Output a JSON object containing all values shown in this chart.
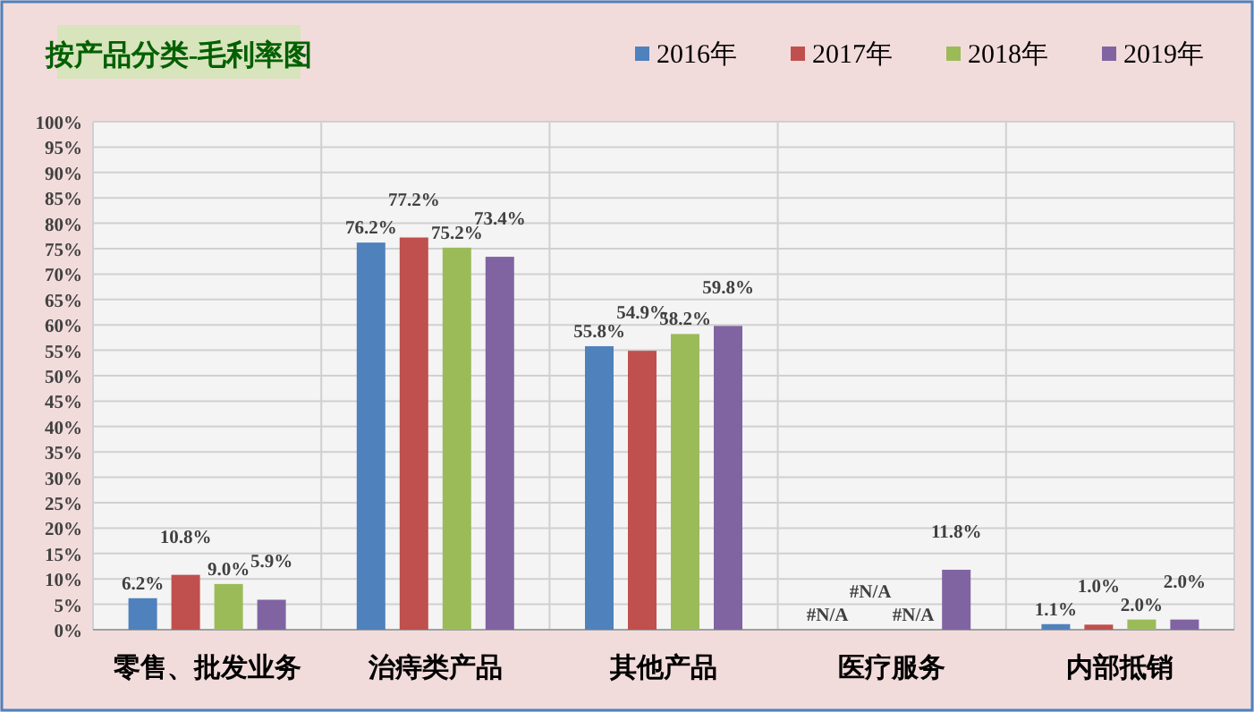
{
  "chart_data": {
    "type": "bar",
    "title": "按产品分类-毛利率图",
    "categories": [
      "零售、批发业务",
      "治痔类产品",
      "其他产品",
      "医疗服务",
      "内部抵销"
    ],
    "series": [
      {
        "name": "2016年",
        "color": "#4f81bd",
        "values": [
          6.2,
          76.2,
          55.8,
          null,
          1.1
        ],
        "value_labels": [
          "6.2%",
          "76.2%",
          "55.8%",
          "#N/A",
          "1.1%"
        ]
      },
      {
        "name": "2017年",
        "color": "#c0504d",
        "values": [
          10.8,
          77.2,
          54.9,
          null,
          1.0
        ],
        "value_labels": [
          "10.8%",
          "77.2%",
          "54.9%",
          "#N/A",
          "1.0%"
        ]
      },
      {
        "name": "2018年",
        "color": "#9bbb59",
        "values": [
          9.0,
          75.2,
          58.2,
          null,
          2.0
        ],
        "value_labels": [
          "9.0%",
          "75.2%",
          "58.2%",
          "#N/A",
          "2.0%"
        ]
      },
      {
        "name": "2019年",
        "color": "#8064a2",
        "values": [
          5.9,
          73.4,
          59.8,
          11.8,
          2.0
        ],
        "value_labels": [
          "5.9%",
          "73.4%",
          "59.8%",
          "11.8%",
          "2.0%"
        ]
      }
    ],
    "ylim": [
      0,
      100
    ],
    "yticks": [
      {
        "value": 0,
        "label": "0%"
      },
      {
        "value": 5,
        "label": "5%"
      },
      {
        "value": 10,
        "label": "10%"
      },
      {
        "value": 15,
        "label": "15%"
      },
      {
        "value": 20,
        "label": "20%"
      },
      {
        "value": 25,
        "label": "25%"
      },
      {
        "value": 30,
        "label": "30%"
      },
      {
        "value": 35,
        "label": "35%"
      },
      {
        "value": 40,
        "label": "40%"
      },
      {
        "value": 45,
        "label": "45%"
      },
      {
        "value": 50,
        "label": "50%"
      },
      {
        "value": 55,
        "label": "55%"
      },
      {
        "value": 60,
        "label": "60%"
      },
      {
        "value": 65,
        "label": "65%"
      },
      {
        "value": 70,
        "label": "70%"
      },
      {
        "value": 75,
        "label": "75%"
      },
      {
        "value": 80,
        "label": "80%"
      },
      {
        "value": 85,
        "label": "85%"
      },
      {
        "value": 90,
        "label": "90%"
      },
      {
        "value": 95,
        "label": "95%"
      },
      {
        "value": 100,
        "label": "100%"
      }
    ],
    "grid": true,
    "legend": "top right"
  }
}
